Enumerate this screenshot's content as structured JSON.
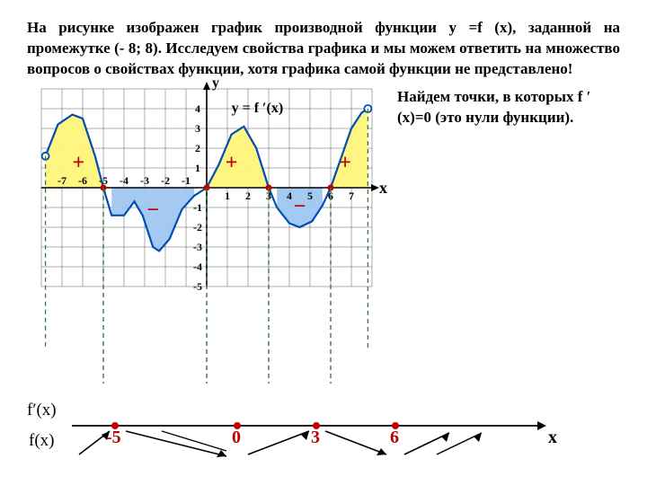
{
  "header": {
    "text": "На рисунке изображен график производной функции y =f (x), заданной на промежутке (- 8; 8). Исследуем свойства графика и мы можем ответить на множество вопросов о свойствах функции, хотя графика самой функции не представлено!"
  },
  "side": {
    "text": "Найдем точки, в которых f ′(x)=0 (это нули функции)."
  },
  "chart": {
    "type": "line",
    "xlim": [
      -8,
      8
    ],
    "ylim": [
      -5,
      5
    ],
    "xticks": [
      -7,
      -6,
      -5,
      -4,
      -3,
      -2,
      -1,
      1,
      2,
      3,
      4,
      5,
      6,
      7
    ],
    "yticks_pos": [
      4,
      3,
      2,
      1
    ],
    "yticks_neg": [
      -1,
      -2,
      -3,
      -4,
      -5
    ],
    "grid_color": "#404040",
    "axis_color": "#000000",
    "curve_color": "#004db3",
    "curve_width": 2.2,
    "fill_pos": "#fff47a",
    "fill_neg": "#9fc7f0",
    "root_color": "#c00000",
    "y_label": "y",
    "x_label": "x",
    "func_label": "y = f ′(x)",
    "signs": [
      "+",
      "−",
      "+",
      "−",
      "+"
    ],
    "sign_color": "#c00000",
    "roots": [
      -5,
      0,
      3,
      6
    ],
    "open_pts": [
      [
        -7.8,
        1.6
      ],
      [
        7.8,
        4
      ]
    ],
    "curve": [
      [
        -7.8,
        1.6
      ],
      [
        -7.2,
        3.2
      ],
      [
        -6.5,
        3.7
      ],
      [
        -6.0,
        3.5
      ],
      [
        -5.4,
        1.6
      ],
      [
        -5.0,
        0.0
      ],
      [
        -4.6,
        -1.4
      ],
      [
        -4.0,
        -1.4
      ],
      [
        -3.5,
        -0.7
      ],
      [
        -3.1,
        -1.4
      ],
      [
        -2.6,
        -3.0
      ],
      [
        -2.3,
        -3.2
      ],
      [
        -1.8,
        -2.6
      ],
      [
        -1.2,
        -1.1
      ],
      [
        -0.6,
        -0.4
      ],
      [
        0.0,
        0.0
      ],
      [
        0.6,
        1.2
      ],
      [
        1.2,
        2.7
      ],
      [
        1.8,
        3.1
      ],
      [
        2.4,
        2.0
      ],
      [
        2.7,
        1.0
      ],
      [
        3.0,
        0.0
      ],
      [
        3.4,
        -1.0
      ],
      [
        4.0,
        -1.8
      ],
      [
        4.5,
        -2.0
      ],
      [
        5.1,
        -1.7
      ],
      [
        5.6,
        -0.9
      ],
      [
        6.0,
        0.0
      ],
      [
        6.5,
        1.5
      ],
      [
        7.0,
        3.0
      ],
      [
        7.5,
        3.8
      ],
      [
        7.8,
        4.0
      ]
    ]
  },
  "bottom": {
    "label1": "f′(x)",
    "label2": "f(x)",
    "roots": [
      "-5",
      "0",
      "3",
      "6"
    ],
    "x_label": "x"
  }
}
